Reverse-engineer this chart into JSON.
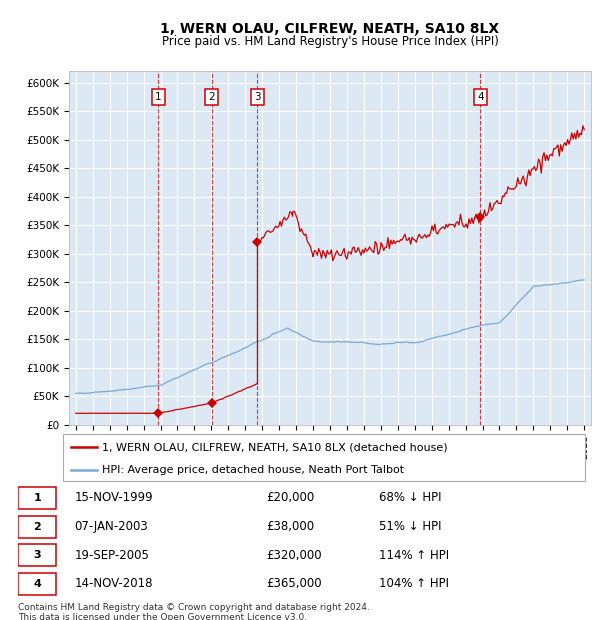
{
  "title": "1, WERN OLAU, CILFREW, NEATH, SA10 8LX",
  "subtitle": "Price paid vs. HM Land Registry's House Price Index (HPI)",
  "bg_color": "#dce9f5",
  "grid_color": "#ffffff",
  "sale_color": "#cc0000",
  "hpi_color": "#7aa8d4",
  "sale_label": "1, WERN OLAU, CILFREW, NEATH, SA10 8LX (detached house)",
  "hpi_label": "HPI: Average price, detached house, Neath Port Talbot",
  "yticks": [
    0,
    50000,
    100000,
    150000,
    200000,
    250000,
    300000,
    350000,
    400000,
    450000,
    500000,
    550000,
    600000
  ],
  "ytick_labels": [
    "£0",
    "£50K",
    "£100K",
    "£150K",
    "£200K",
    "£250K",
    "£300K",
    "£350K",
    "£400K",
    "£450K",
    "£500K",
    "£550K",
    "£600K"
  ],
  "transactions": [
    {
      "num": 1,
      "date": "15-NOV-1999",
      "price": 20000,
      "price_str": "£20,000",
      "pct": "68%",
      "dir": "↓",
      "year": 1999.87
    },
    {
      "num": 2,
      "date": "07-JAN-2003",
      "price": 38000,
      "price_str": "£38,000",
      "pct": "51%",
      "dir": "↓",
      "year": 2003.02
    },
    {
      "num": 3,
      "date": "19-SEP-2005",
      "price": 320000,
      "price_str": "£320,000",
      "pct": "114%",
      "dir": "↑",
      "year": 2005.72
    },
    {
      "num": 4,
      "date": "14-NOV-2018",
      "price": 365000,
      "price_str": "£365,000",
      "pct": "104%",
      "dir": "↑",
      "year": 2018.87
    }
  ],
  "footer": "Contains HM Land Registry data © Crown copyright and database right 2024.\nThis data is licensed under the Open Government Licence v3.0."
}
